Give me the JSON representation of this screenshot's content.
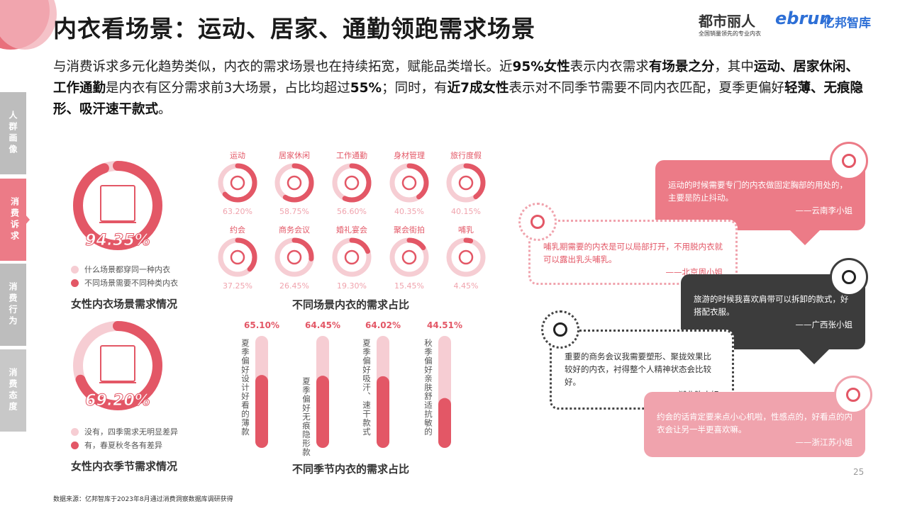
{
  "header": {
    "title": "内衣看场景：运动、居家、通勤领跑需求场景",
    "logo_brand": "都市丽人",
    "logo_brand_slogan": "全国销量领先的专业内衣",
    "logo_ebrun": "ebrun",
    "logo_ebrun_cn": "亿邦智库"
  },
  "intro": {
    "parts": [
      "与消费诉求多元化趋势类似，内衣的需求场景也在持续拓宽，赋能品类增长。近",
      "95%女性",
      "表示内衣需求",
      "有场景之分",
      "，其中",
      "运动、居家休闲、工作通勤",
      "是内衣有区分需求前3大场景，占比均超过",
      "55%",
      "；同时，有",
      "近7成女性",
      "表示对不同季节需要不同内衣匹配，夏季更偏好",
      "轻薄、无痕隐形、吸汗速干款式",
      "。"
    ]
  },
  "sidebar": {
    "tabs": [
      {
        "label": "人群画像",
        "active": false
      },
      {
        "label": "消费诉求",
        "active": true
      },
      {
        "label": "消费行为",
        "active": false
      },
      {
        "label": "消费态度",
        "active": false
      }
    ]
  },
  "colors": {
    "primary": "#e35766",
    "light": "#f6cdd3",
    "bubble_pink": "#ec7b87",
    "bubble_light": "#f0a3ad",
    "dark": "#3c3c3c"
  },
  "scene_donut": {
    "value": 94.35,
    "label": "94.35%",
    "icon": "buildings-icon",
    "legend": [
      "什么场景都穿同一种内衣",
      "不同场景需要不同种类内衣"
    ],
    "title": "女性内衣场景需求情况"
  },
  "season_donut": {
    "value": 69.2,
    "label": "69.20%",
    "icon": "calendar-leaf-icon",
    "legend": [
      "没有，四季需求无明显差异",
      "有，春夏秋冬各有差异"
    ],
    "title": "女性内衣季节需求情况"
  },
  "scenes": {
    "title": "不同场景内衣的需求占比",
    "items": [
      {
        "label": "运动",
        "value": 63.2,
        "pct": "63.20%",
        "icon": "soccer-player-icon"
      },
      {
        "label": "居家休闲",
        "value": 58.75,
        "pct": "58.75%",
        "icon": "sitting-person-icon"
      },
      {
        "label": "工作通勤",
        "value": 56.6,
        "pct": "56.60%",
        "icon": "desk-worker-icon"
      },
      {
        "label": "身材管理",
        "value": 40.35,
        "pct": "40.35%",
        "icon": "shapewear-icon"
      },
      {
        "label": "旅行度假",
        "value": 40.15,
        "pct": "40.15%",
        "icon": "traveler-icon"
      },
      {
        "label": "约会",
        "value": 37.25,
        "pct": "37.25%",
        "icon": "calendar-heart-icon"
      },
      {
        "label": "商务会议",
        "value": 26.45,
        "pct": "26.45%",
        "icon": "meeting-icon"
      },
      {
        "label": "婚礼宴会",
        "value": 19.3,
        "pct": "19.30%",
        "icon": "rings-icon"
      },
      {
        "label": "聚会街拍",
        "value": 15.45,
        "pct": "15.45%",
        "icon": "camera-icon"
      },
      {
        "label": "哺乳",
        "value": 4.45,
        "pct": "4.45%",
        "icon": "baby-bottle-icon"
      }
    ]
  },
  "seasons": {
    "title": "不同季节内衣的需求占比",
    "items": [
      {
        "label": "夏季偏好设计好看的薄款",
        "value": 65.1,
        "pct": "65.10%"
      },
      {
        "label": "夏季偏好无痕隐形款",
        "value": 64.45,
        "pct": "64.45%"
      },
      {
        "label": "夏季偏好吸汗、速干款式",
        "value": 64.02,
        "pct": "64.02%"
      },
      {
        "label": "秋季偏好亲肤舒适抗敏的",
        "value": 44.51,
        "pct": "44.51%"
      }
    ]
  },
  "quotes": [
    {
      "text": "运动的时候需要专门的内衣做固定胸部的用处的，主要是防止抖动。",
      "who": "——云南李小姐",
      "icon": "soccer-player-icon"
    },
    {
      "text": "哺乳期需要的内衣是可以局部打开，不用脱内衣就可以露出乳头哺乳。",
      "who": "——北京周小姐",
      "icon": "baby-bottle-icon"
    },
    {
      "text": "旅游的时候我喜欢肩带可以拆卸的款式，好搭配衣服。",
      "who": "——广西张小姐",
      "icon": "traveler-icon"
    },
    {
      "text": "重要的商务会议我需要塑形、聚拢效果比较好的内衣，衬得整个人精神状态会比较好。",
      "who": "——湖北陈小姐",
      "icon": "desk-worker-icon"
    },
    {
      "text": "约会的话肯定要来点小心机啦，性感点的，好看点的内衣会让另一半更喜欢嘛。",
      "who": "——浙江苏小姐",
      "icon": "calendar-heart-icon"
    }
  ],
  "footer": {
    "page": "25",
    "source": "数据来源：亿邦智库于2023年8月通过消费洞察数据库调研获得"
  }
}
